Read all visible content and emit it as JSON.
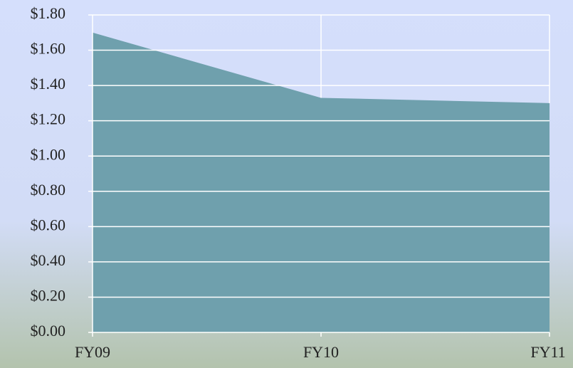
{
  "chart_data": {
    "type": "area",
    "categories": [
      "FY09",
      "FY10",
      "FY11"
    ],
    "values": [
      1.7,
      1.33,
      1.3
    ],
    "color": "#6fa0ad",
    "ylim": [
      0,
      1.8
    ],
    "yticks": [
      {
        "value": 0,
        "label": "$0.00"
      },
      {
        "value": 0.2,
        "label": "$0.20"
      },
      {
        "value": 0.4,
        "label": "$0.40"
      },
      {
        "value": 0.6,
        "label": "$0.60"
      },
      {
        "value": 0.8,
        "label": "$0.80"
      },
      {
        "value": 1.0,
        "label": "$1.00"
      },
      {
        "value": 1.2,
        "label": "$1.20"
      },
      {
        "value": 1.4,
        "label": "$1.40"
      },
      {
        "value": 1.6,
        "label": "$1.60"
      },
      {
        "value": 1.8,
        "label": "$1.80"
      }
    ],
    "grid": true
  }
}
